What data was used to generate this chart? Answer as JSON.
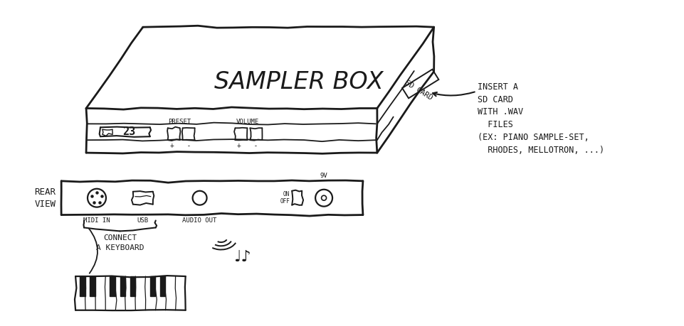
{
  "background_color": "#ffffff",
  "ink_color": "#1a1a1a",
  "title": "SAMPLER BOX",
  "annotation_sd_line1": "INSERT A",
  "annotation_sd_line2": "SD CARD",
  "annotation_sd_line3": "WITH .WAV",
  "annotation_sd_line4": "  FILES",
  "annotation_sd_line5": "(EX: PIANO SAMPLE-SET,",
  "annotation_sd_line6": "  RHODES, MELLOTRON, ...)",
  "rear_view_label": "REAR\nVIEW",
  "connect_label": "CONNECT\nA KEYBOARD",
  "preset_label": "PRESET",
  "volume_label": "VOLUME",
  "sd_card_label": "SD CARD",
  "midi_label": "MIDI IN",
  "usb_label": "USB",
  "audio_label": "AUDIO OUT",
  "onoff_label": "ON\nOFF",
  "pwr_label": "9V"
}
